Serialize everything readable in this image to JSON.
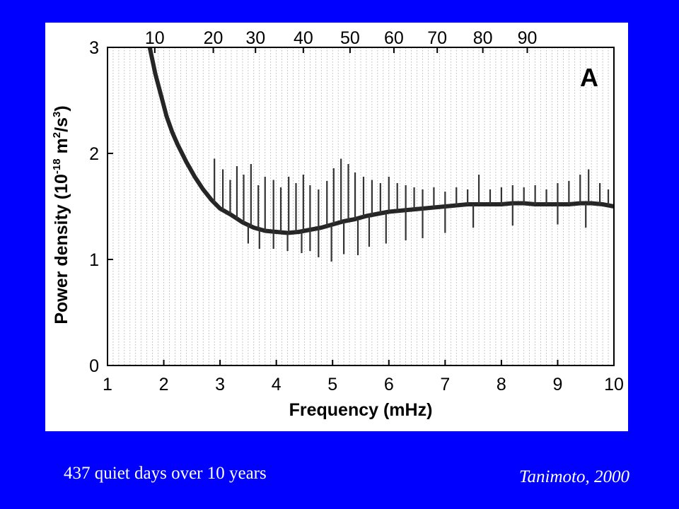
{
  "slide": {
    "background": "#0000ff",
    "caption_left": "437 quiet days over 10 years",
    "caption_right": "Tanimoto, 2000"
  },
  "chart_data": {
    "type": "line",
    "panel_label": "A",
    "xlabel": "Frequency (mHz)",
    "ylabel_main": "Power density (10",
    "ylabel_exp1": "-18",
    "ylabel_mid": " m",
    "ylabel_exp2": "2",
    "ylabel_mid2": "/s",
    "ylabel_exp3": "3",
    "ylabel_end": ")",
    "xlim": [
      1,
      10
    ],
    "ylim": [
      0,
      3
    ],
    "x_ticks": [
      1,
      2,
      3,
      4,
      5,
      6,
      7,
      8,
      9,
      10
    ],
    "y_ticks": [
      0,
      1,
      2,
      3
    ],
    "top_ticks": [
      10,
      20,
      30,
      40,
      50,
      60,
      70,
      80,
      90
    ],
    "top_tick_positions_mhz": [
      1.84,
      2.88,
      3.63,
      4.48,
      5.31,
      6.09,
      6.86,
      7.67,
      8.46
    ],
    "grid": true,
    "series": [
      {
        "color": "#000000",
        "x": [
          1.75,
          1.85,
          1.95,
          2.05,
          2.15,
          2.25,
          2.4,
          2.55,
          2.7,
          2.85,
          3.0,
          3.2,
          3.4,
          3.6,
          3.8,
          4.0,
          4.2,
          4.4,
          4.6,
          4.8,
          5.0,
          5.2,
          5.4,
          5.6,
          5.8,
          6.0,
          6.2,
          6.4,
          6.6,
          6.8,
          7.0,
          7.2,
          7.4,
          7.6,
          7.8,
          8.0,
          8.2,
          8.4,
          8.6,
          8.8,
          9.0,
          9.2,
          9.4,
          9.6,
          9.8,
          10.0
        ],
        "y": [
          3.0,
          2.75,
          2.55,
          2.35,
          2.2,
          2.08,
          1.92,
          1.78,
          1.66,
          1.56,
          1.48,
          1.42,
          1.35,
          1.3,
          1.27,
          1.26,
          1.25,
          1.26,
          1.28,
          1.3,
          1.33,
          1.36,
          1.38,
          1.41,
          1.43,
          1.45,
          1.46,
          1.47,
          1.48,
          1.49,
          1.5,
          1.51,
          1.52,
          1.52,
          1.52,
          1.52,
          1.53,
          1.53,
          1.52,
          1.52,
          1.52,
          1.52,
          1.53,
          1.53,
          1.52,
          1.5
        ]
      }
    ],
    "spikes": [
      {
        "x": 2.9,
        "y": 1.95
      },
      {
        "x": 3.05,
        "y": 1.85
      },
      {
        "x": 3.18,
        "y": 1.75
      },
      {
        "x": 3.3,
        "y": 1.88
      },
      {
        "x": 3.42,
        "y": 1.8
      },
      {
        "x": 3.55,
        "y": 1.9
      },
      {
        "x": 3.68,
        "y": 1.7
      },
      {
        "x": 3.8,
        "y": 1.78
      },
      {
        "x": 3.95,
        "y": 1.75
      },
      {
        "x": 4.08,
        "y": 1.68
      },
      {
        "x": 4.22,
        "y": 1.78
      },
      {
        "x": 4.35,
        "y": 1.72
      },
      {
        "x": 4.48,
        "y": 1.8
      },
      {
        "x": 4.6,
        "y": 1.7
      },
      {
        "x": 4.75,
        "y": 1.66
      },
      {
        "x": 4.9,
        "y": 1.74
      },
      {
        "x": 5.02,
        "y": 1.86
      },
      {
        "x": 5.15,
        "y": 1.95
      },
      {
        "x": 5.28,
        "y": 1.9
      },
      {
        "x": 5.4,
        "y": 1.82
      },
      {
        "x": 5.55,
        "y": 1.78
      },
      {
        "x": 5.7,
        "y": 1.75
      },
      {
        "x": 5.85,
        "y": 1.72
      },
      {
        "x": 6.0,
        "y": 1.78
      },
      {
        "x": 6.15,
        "y": 1.72
      },
      {
        "x": 6.3,
        "y": 1.7
      },
      {
        "x": 6.45,
        "y": 1.68
      },
      {
        "x": 6.6,
        "y": 1.66
      },
      {
        "x": 6.8,
        "y": 1.68
      },
      {
        "x": 7.0,
        "y": 1.64
      },
      {
        "x": 7.2,
        "y": 1.68
      },
      {
        "x": 7.4,
        "y": 1.66
      },
      {
        "x": 7.6,
        "y": 1.8
      },
      {
        "x": 7.8,
        "y": 1.66
      },
      {
        "x": 8.0,
        "y": 1.68
      },
      {
        "x": 8.2,
        "y": 1.7
      },
      {
        "x": 8.4,
        "y": 1.68
      },
      {
        "x": 8.6,
        "y": 1.7
      },
      {
        "x": 8.8,
        "y": 1.66
      },
      {
        "x": 9.0,
        "y": 1.72
      },
      {
        "x": 9.2,
        "y": 1.74
      },
      {
        "x": 9.4,
        "y": 1.8
      },
      {
        "x": 9.55,
        "y": 1.85
      },
      {
        "x": 9.75,
        "y": 1.72
      },
      {
        "x": 9.9,
        "y": 1.66
      }
    ],
    "dips": [
      {
        "x": 3.5,
        "y": 1.15
      },
      {
        "x": 3.7,
        "y": 1.1
      },
      {
        "x": 3.95,
        "y": 1.1
      },
      {
        "x": 4.2,
        "y": 1.08
      },
      {
        "x": 4.45,
        "y": 1.06
      },
      {
        "x": 4.6,
        "y": 1.08
      },
      {
        "x": 4.75,
        "y": 1.02
      },
      {
        "x": 4.98,
        "y": 0.98
      },
      {
        "x": 5.2,
        "y": 1.05
      },
      {
        "x": 5.45,
        "y": 1.04
      },
      {
        "x": 5.65,
        "y": 1.12
      },
      {
        "x": 5.95,
        "y": 1.15
      },
      {
        "x": 6.3,
        "y": 1.18
      },
      {
        "x": 6.6,
        "y": 1.2
      },
      {
        "x": 7.0,
        "y": 1.25
      },
      {
        "x": 7.5,
        "y": 1.3
      },
      {
        "x": 8.2,
        "y": 1.32
      },
      {
        "x": 9.0,
        "y": 1.33
      },
      {
        "x": 9.5,
        "y": 1.3
      }
    ]
  }
}
